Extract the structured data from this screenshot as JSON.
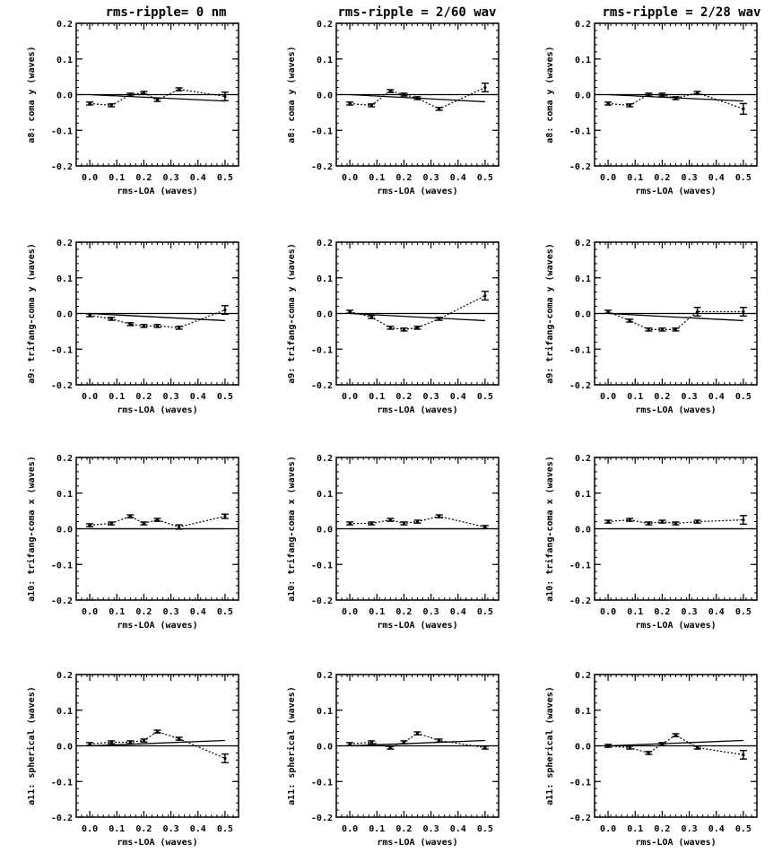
{
  "colors": {
    "ink": "#000000",
    "background": "#ffffff"
  },
  "chart_data": {
    "type": "scatter",
    "layout": "grid 4 rows x 3 columns",
    "column_titles": [
      "rms-ripple= 0 nm",
      "rms-ripple = 2/60 wav",
      "rms-ripple = 2/28 wav"
    ],
    "xlabel": "rms-LOA (waves)",
    "xlim": [
      -0.05,
      0.55
    ],
    "xticks": [
      0.0,
      0.1,
      0.2,
      0.3,
      0.4,
      0.5
    ],
    "xtick_labels": [
      "0.0",
      "0.1",
      "0.2",
      "0.3",
      "0.4",
      "0.5"
    ],
    "ylim": [
      -0.2,
      0.2
    ],
    "yticks": [
      -0.2,
      -0.1,
      0.0,
      0.1,
      0.2
    ],
    "ytick_labels": [
      "-0.2",
      "-0.1",
      "0.0",
      "0.1",
      "0.2"
    ],
    "grid": false,
    "rows": [
      {
        "ylabel": "a8: coma y (waves)",
        "panels": [
          {
            "x": [
              0.0,
              0.08,
              0.15,
              0.2,
              0.25,
              0.33,
              0.5
            ],
            "y": [
              -0.025,
              -0.03,
              0.0,
              0.005,
              -0.015,
              0.015,
              -0.005
            ],
            "err": [
              0.004,
              0.004,
              0.004,
              0.004,
              0.004,
              0.004,
              0.012
            ],
            "fit": [
              0.0,
              0.5,
              0.0,
              -0.018
            ]
          },
          {
            "x": [
              0.0,
              0.08,
              0.15,
              0.2,
              0.25,
              0.33,
              0.5
            ],
            "y": [
              -0.025,
              -0.03,
              0.01,
              0.0,
              -0.01,
              -0.04,
              0.02
            ],
            "err": [
              0.004,
              0.004,
              0.004,
              0.004,
              0.004,
              0.004,
              0.012
            ],
            "fit": [
              0.0,
              0.5,
              0.0,
              -0.02
            ]
          },
          {
            "x": [
              0.0,
              0.08,
              0.15,
              0.2,
              0.25,
              0.33,
              0.5
            ],
            "y": [
              -0.025,
              -0.03,
              0.0,
              0.0,
              -0.01,
              0.005,
              -0.04
            ],
            "err": [
              0.004,
              0.004,
              0.004,
              0.004,
              0.004,
              0.004,
              0.015
            ],
            "fit": [
              0.0,
              0.5,
              0.0,
              -0.018
            ]
          }
        ]
      },
      {
        "ylabel": "a9: trifang-coma y (waves)",
        "panels": [
          {
            "x": [
              0.0,
              0.08,
              0.15,
              0.2,
              0.25,
              0.33,
              0.5
            ],
            "y": [
              -0.005,
              -0.015,
              -0.03,
              -0.035,
              -0.035,
              -0.04,
              0.01
            ],
            "err": [
              0.004,
              0.004,
              0.004,
              0.004,
              0.004,
              0.004,
              0.012
            ],
            "fit": [
              0.0,
              0.5,
              0.0,
              -0.02
            ]
          },
          {
            "x": [
              0.0,
              0.08,
              0.15,
              0.2,
              0.25,
              0.33,
              0.5
            ],
            "y": [
              0.005,
              -0.01,
              -0.04,
              -0.045,
              -0.04,
              -0.015,
              0.05
            ],
            "err": [
              0.004,
              0.004,
              0.004,
              0.004,
              0.004,
              0.004,
              0.012
            ],
            "fit": [
              0.0,
              0.5,
              0.0,
              -0.02
            ]
          },
          {
            "x": [
              0.0,
              0.08,
              0.15,
              0.2,
              0.25,
              0.33,
              0.5
            ],
            "y": [
              0.005,
              -0.02,
              -0.045,
              -0.045,
              -0.045,
              0.005,
              0.005
            ],
            "err": [
              0.004,
              0.004,
              0.004,
              0.004,
              0.004,
              0.012,
              0.012
            ],
            "fit": [
              0.0,
              0.5,
              0.0,
              -0.02
            ]
          }
        ]
      },
      {
        "ylabel": "a10: trifang-coma x (waves)",
        "panels": [
          {
            "x": [
              0.0,
              0.08,
              0.15,
              0.2,
              0.25,
              0.33,
              0.5
            ],
            "y": [
              0.01,
              0.015,
              0.035,
              0.015,
              0.025,
              0.005,
              0.035
            ],
            "err": [
              0.004,
              0.004,
              0.004,
              0.004,
              0.004,
              0.006,
              0.006
            ],
            "fit": [
              0.0,
              0.5,
              0.0,
              0.0
            ]
          },
          {
            "x": [
              0.0,
              0.08,
              0.15,
              0.2,
              0.25,
              0.33,
              0.5
            ],
            "y": [
              0.015,
              0.015,
              0.025,
              0.015,
              0.02,
              0.035,
              0.005
            ],
            "err": [
              0.004,
              0.004,
              0.004,
              0.004,
              0.004,
              0.004,
              0.004
            ],
            "fit": [
              0.0,
              0.5,
              0.0,
              0.0
            ]
          },
          {
            "x": [
              0.0,
              0.08,
              0.15,
              0.2,
              0.25,
              0.33,
              0.5
            ],
            "y": [
              0.02,
              0.025,
              0.015,
              0.02,
              0.015,
              0.02,
              0.025
            ],
            "err": [
              0.004,
              0.004,
              0.004,
              0.004,
              0.004,
              0.004,
              0.012
            ],
            "fit": [
              0.0,
              0.5,
              0.0,
              0.0
            ]
          }
        ]
      },
      {
        "ylabel": "a11: spherical (waves)",
        "panels": [
          {
            "x": [
              0.0,
              0.08,
              0.15,
              0.2,
              0.25,
              0.33,
              0.5
            ],
            "y": [
              0.005,
              0.01,
              0.01,
              0.015,
              0.04,
              0.02,
              -0.035
            ],
            "err": [
              0.004,
              0.004,
              0.004,
              0.004,
              0.004,
              0.004,
              0.012
            ],
            "fit": [
              0.0,
              0.5,
              0.0,
              0.015
            ]
          },
          {
            "x": [
              0.0,
              0.08,
              0.15,
              0.2,
              0.25,
              0.33,
              0.5
            ],
            "y": [
              0.005,
              0.01,
              -0.005,
              0.01,
              0.035,
              0.015,
              -0.005
            ],
            "err": [
              0.004,
              0.004,
              0.004,
              0.004,
              0.004,
              0.004,
              0.004
            ],
            "fit": [
              0.0,
              0.5,
              0.0,
              0.015
            ]
          },
          {
            "x": [
              0.0,
              0.08,
              0.15,
              0.2,
              0.25,
              0.33,
              0.5
            ],
            "y": [
              0.0,
              -0.005,
              -0.02,
              0.005,
              0.03,
              -0.005,
              -0.025
            ],
            "err": [
              0.004,
              0.004,
              0.004,
              0.004,
              0.004,
              0.004,
              0.012
            ],
            "fit": [
              0.0,
              0.5,
              0.0,
              0.015
            ]
          }
        ]
      }
    ]
  }
}
